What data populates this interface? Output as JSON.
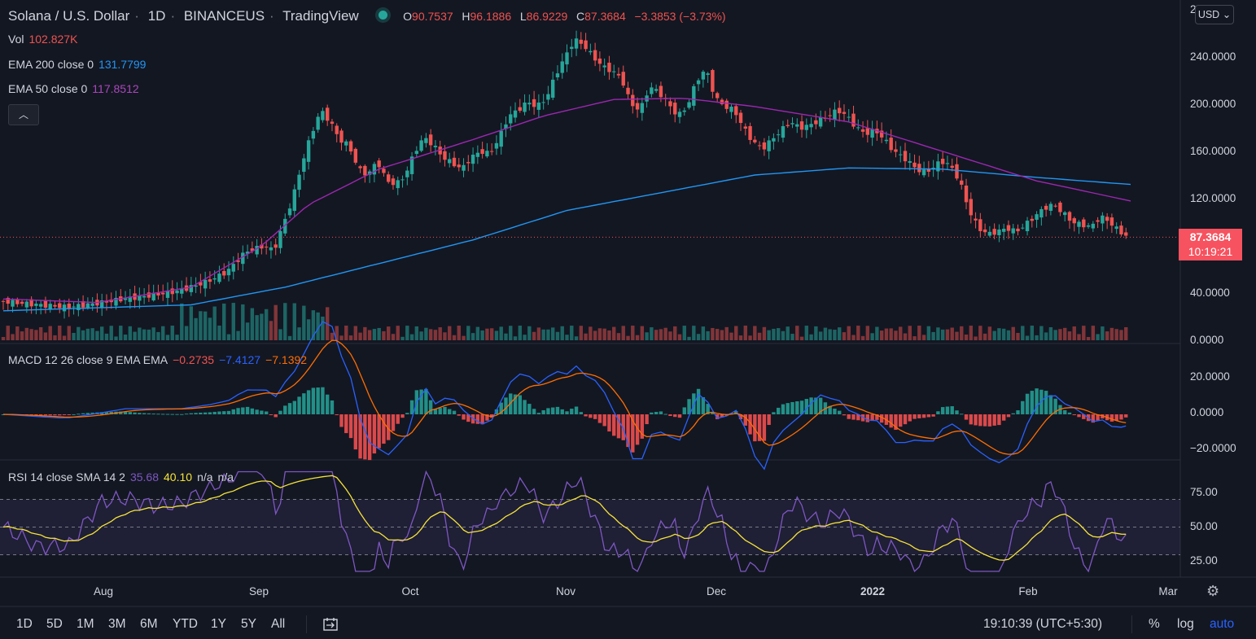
{
  "header": {
    "symbol": "Solana / U.S. Dollar",
    "interval": "1D",
    "exchange": "BINANCEUS",
    "provider": "TradingView",
    "o_label": "O",
    "o_value": "90.7537",
    "h_label": "H",
    "h_value": "96.1886",
    "l_label": "L",
    "l_value": "86.9229",
    "c_label": "C",
    "c_value": "87.3684",
    "change": "−3.3853 (−3.73%)"
  },
  "indicators": {
    "vol": {
      "label": "Vol",
      "value": "102.827K"
    },
    "ema200": {
      "label": "EMA 200 close 0",
      "value": "131.7799"
    },
    "ema50": {
      "label": "EMA 50 close 0",
      "value": "117.8512"
    },
    "macd": {
      "label": "MACD 12 26 close 9 EMA EMA",
      "hist": "−0.2735",
      "macd": "−7.4127",
      "signal": "−7.1392"
    },
    "rsi": {
      "label": "RSI 14 close SMA 14 2",
      "rsi": "35.68",
      "sma": "40.10",
      "na1": "n/a",
      "na2": "n/a"
    }
  },
  "price_axis": [
    "240.0000",
    "200.0000",
    "160.0000",
    "120.0000",
    "40.0000",
    "0.0000"
  ],
  "price_axis_top_partial": "2",
  "macd_axis": [
    "20.0000",
    "0.0000",
    "−20.0000"
  ],
  "rsi_axis": [
    "75.00",
    "50.00",
    "25.00"
  ],
  "last_price": {
    "value": "87.3684",
    "countdown": "10:19:21"
  },
  "currency": "USD",
  "time_axis": [
    "Aug",
    "Sep",
    "Oct",
    "Nov",
    "Dec",
    "2022",
    "Feb",
    "Mar"
  ],
  "timeframes": [
    "1D",
    "5D",
    "1M",
    "3M",
    "6M",
    "YTD",
    "1Y",
    "5Y",
    "All"
  ],
  "bottom_right": {
    "clock": "19:10:39 (UTC+5:30)",
    "percent": "%",
    "log": "log",
    "auto": "auto"
  },
  "colors": {
    "background": "#131722",
    "up": "#26a69a",
    "down": "#ef5350",
    "ema200": "#2196f3",
    "ema50": "#9c27b0",
    "macd_line": "#2962ff",
    "signal_line": "#ff6d00",
    "rsi_line": "#7e57c2",
    "rsi_sma": "#f5e33a"
  },
  "chart_data": {
    "type": "candlestick",
    "x_range": [
      "2021-06-22",
      "2022-02-24"
    ],
    "y_range": [
      0,
      265
    ],
    "price_points": [
      [
        0,
        33
      ],
      [
        8,
        30
      ],
      [
        14,
        28
      ],
      [
        20,
        31
      ],
      [
        26,
        35
      ],
      [
        32,
        38
      ],
      [
        38,
        42
      ],
      [
        44,
        50
      ],
      [
        48,
        58
      ],
      [
        52,
        75
      ],
      [
        56,
        80
      ],
      [
        58,
        76
      ],
      [
        60,
        98
      ],
      [
        62,
        120
      ],
      [
        64,
        150
      ],
      [
        66,
        175
      ],
      [
        68,
        195
      ],
      [
        70,
        185
      ],
      [
        72,
        170
      ],
      [
        74,
        165
      ],
      [
        76,
        145
      ],
      [
        78,
        140
      ],
      [
        80,
        152
      ],
      [
        82,
        135
      ],
      [
        84,
        132
      ],
      [
        86,
        140
      ],
      [
        88,
        160
      ],
      [
        90,
        172
      ],
      [
        92,
        165
      ],
      [
        94,
        155
      ],
      [
        96,
        150
      ],
      [
        98,
        145
      ],
      [
        100,
        155
      ],
      [
        102,
        160
      ],
      [
        104,
        158
      ],
      [
        106,
        172
      ],
      [
        108,
        190
      ],
      [
        110,
        195
      ],
      [
        112,
        202
      ],
      [
        114,
        198
      ],
      [
        116,
        205
      ],
      [
        118,
        225
      ],
      [
        120,
        240
      ],
      [
        122,
        255
      ],
      [
        124,
        250
      ],
      [
        126,
        240
      ],
      [
        128,
        232
      ],
      [
        130,
        228
      ],
      [
        132,
        222
      ],
      [
        134,
        200
      ],
      [
        136,
        195
      ],
      [
        138,
        215
      ],
      [
        140,
        210
      ],
      [
        142,
        200
      ],
      [
        144,
        190
      ],
      [
        146,
        198
      ],
      [
        148,
        220
      ],
      [
        150,
        230
      ],
      [
        152,
        205
      ],
      [
        154,
        198
      ],
      [
        156,
        195
      ],
      [
        158,
        180
      ],
      [
        160,
        168
      ],
      [
        162,
        162
      ],
      [
        164,
        170
      ],
      [
        166,
        178
      ],
      [
        168,
        185
      ],
      [
        170,
        180
      ],
      [
        172,
        182
      ],
      [
        174,
        186
      ],
      [
        176,
        190
      ],
      [
        178,
        195
      ],
      [
        180,
        190
      ],
      [
        182,
        180
      ],
      [
        184,
        175
      ],
      [
        186,
        178
      ],
      [
        188,
        170
      ],
      [
        190,
        160
      ],
      [
        192,
        155
      ],
      [
        194,
        148
      ],
      [
        196,
        142
      ],
      [
        198,
        145
      ],
      [
        200,
        152
      ],
      [
        202,
        148
      ],
      [
        204,
        135
      ],
      [
        206,
        110
      ],
      [
        208,
        95
      ],
      [
        210,
        90
      ],
      [
        212,
        92
      ],
      [
        214,
        95
      ],
      [
        216,
        92
      ],
      [
        218,
        98
      ],
      [
        220,
        105
      ],
      [
        222,
        112
      ],
      [
        224,
        115
      ],
      [
        226,
        108
      ],
      [
        228,
        100
      ],
      [
        230,
        98
      ],
      [
        232,
        96
      ],
      [
        234,
        105
      ],
      [
        236,
        100
      ],
      [
        238,
        92
      ],
      [
        240,
        87.37
      ]
    ],
    "ema200_points": [
      [
        0,
        25
      ],
      [
        40,
        30
      ],
      [
        60,
        45
      ],
      [
        80,
        65
      ],
      [
        100,
        85
      ],
      [
        120,
        110
      ],
      [
        140,
        125
      ],
      [
        160,
        140
      ],
      [
        180,
        146
      ],
      [
        200,
        145
      ],
      [
        220,
        138
      ],
      [
        240,
        132
      ]
    ],
    "ema50_points": [
      [
        0,
        35
      ],
      [
        20,
        32
      ],
      [
        40,
        45
      ],
      [
        55,
        80
      ],
      [
        65,
        115
      ],
      [
        80,
        145
      ],
      [
        100,
        170
      ],
      [
        115,
        190
      ],
      [
        130,
        204
      ],
      [
        145,
        205
      ],
      [
        160,
        198
      ],
      [
        180,
        185
      ],
      [
        200,
        160
      ],
      [
        220,
        135
      ],
      [
        240,
        118
      ]
    ],
    "last_close": 87.3684,
    "macd": {
      "y_range": [
        -25,
        30
      ],
      "last": [
        -7.4127,
        -7.1392,
        -0.2735
      ]
    },
    "rsi": {
      "y_range": [
        15,
        95
      ],
      "bands": [
        30,
        50,
        70
      ],
      "last": [
        35.68,
        40.1
      ]
    }
  }
}
